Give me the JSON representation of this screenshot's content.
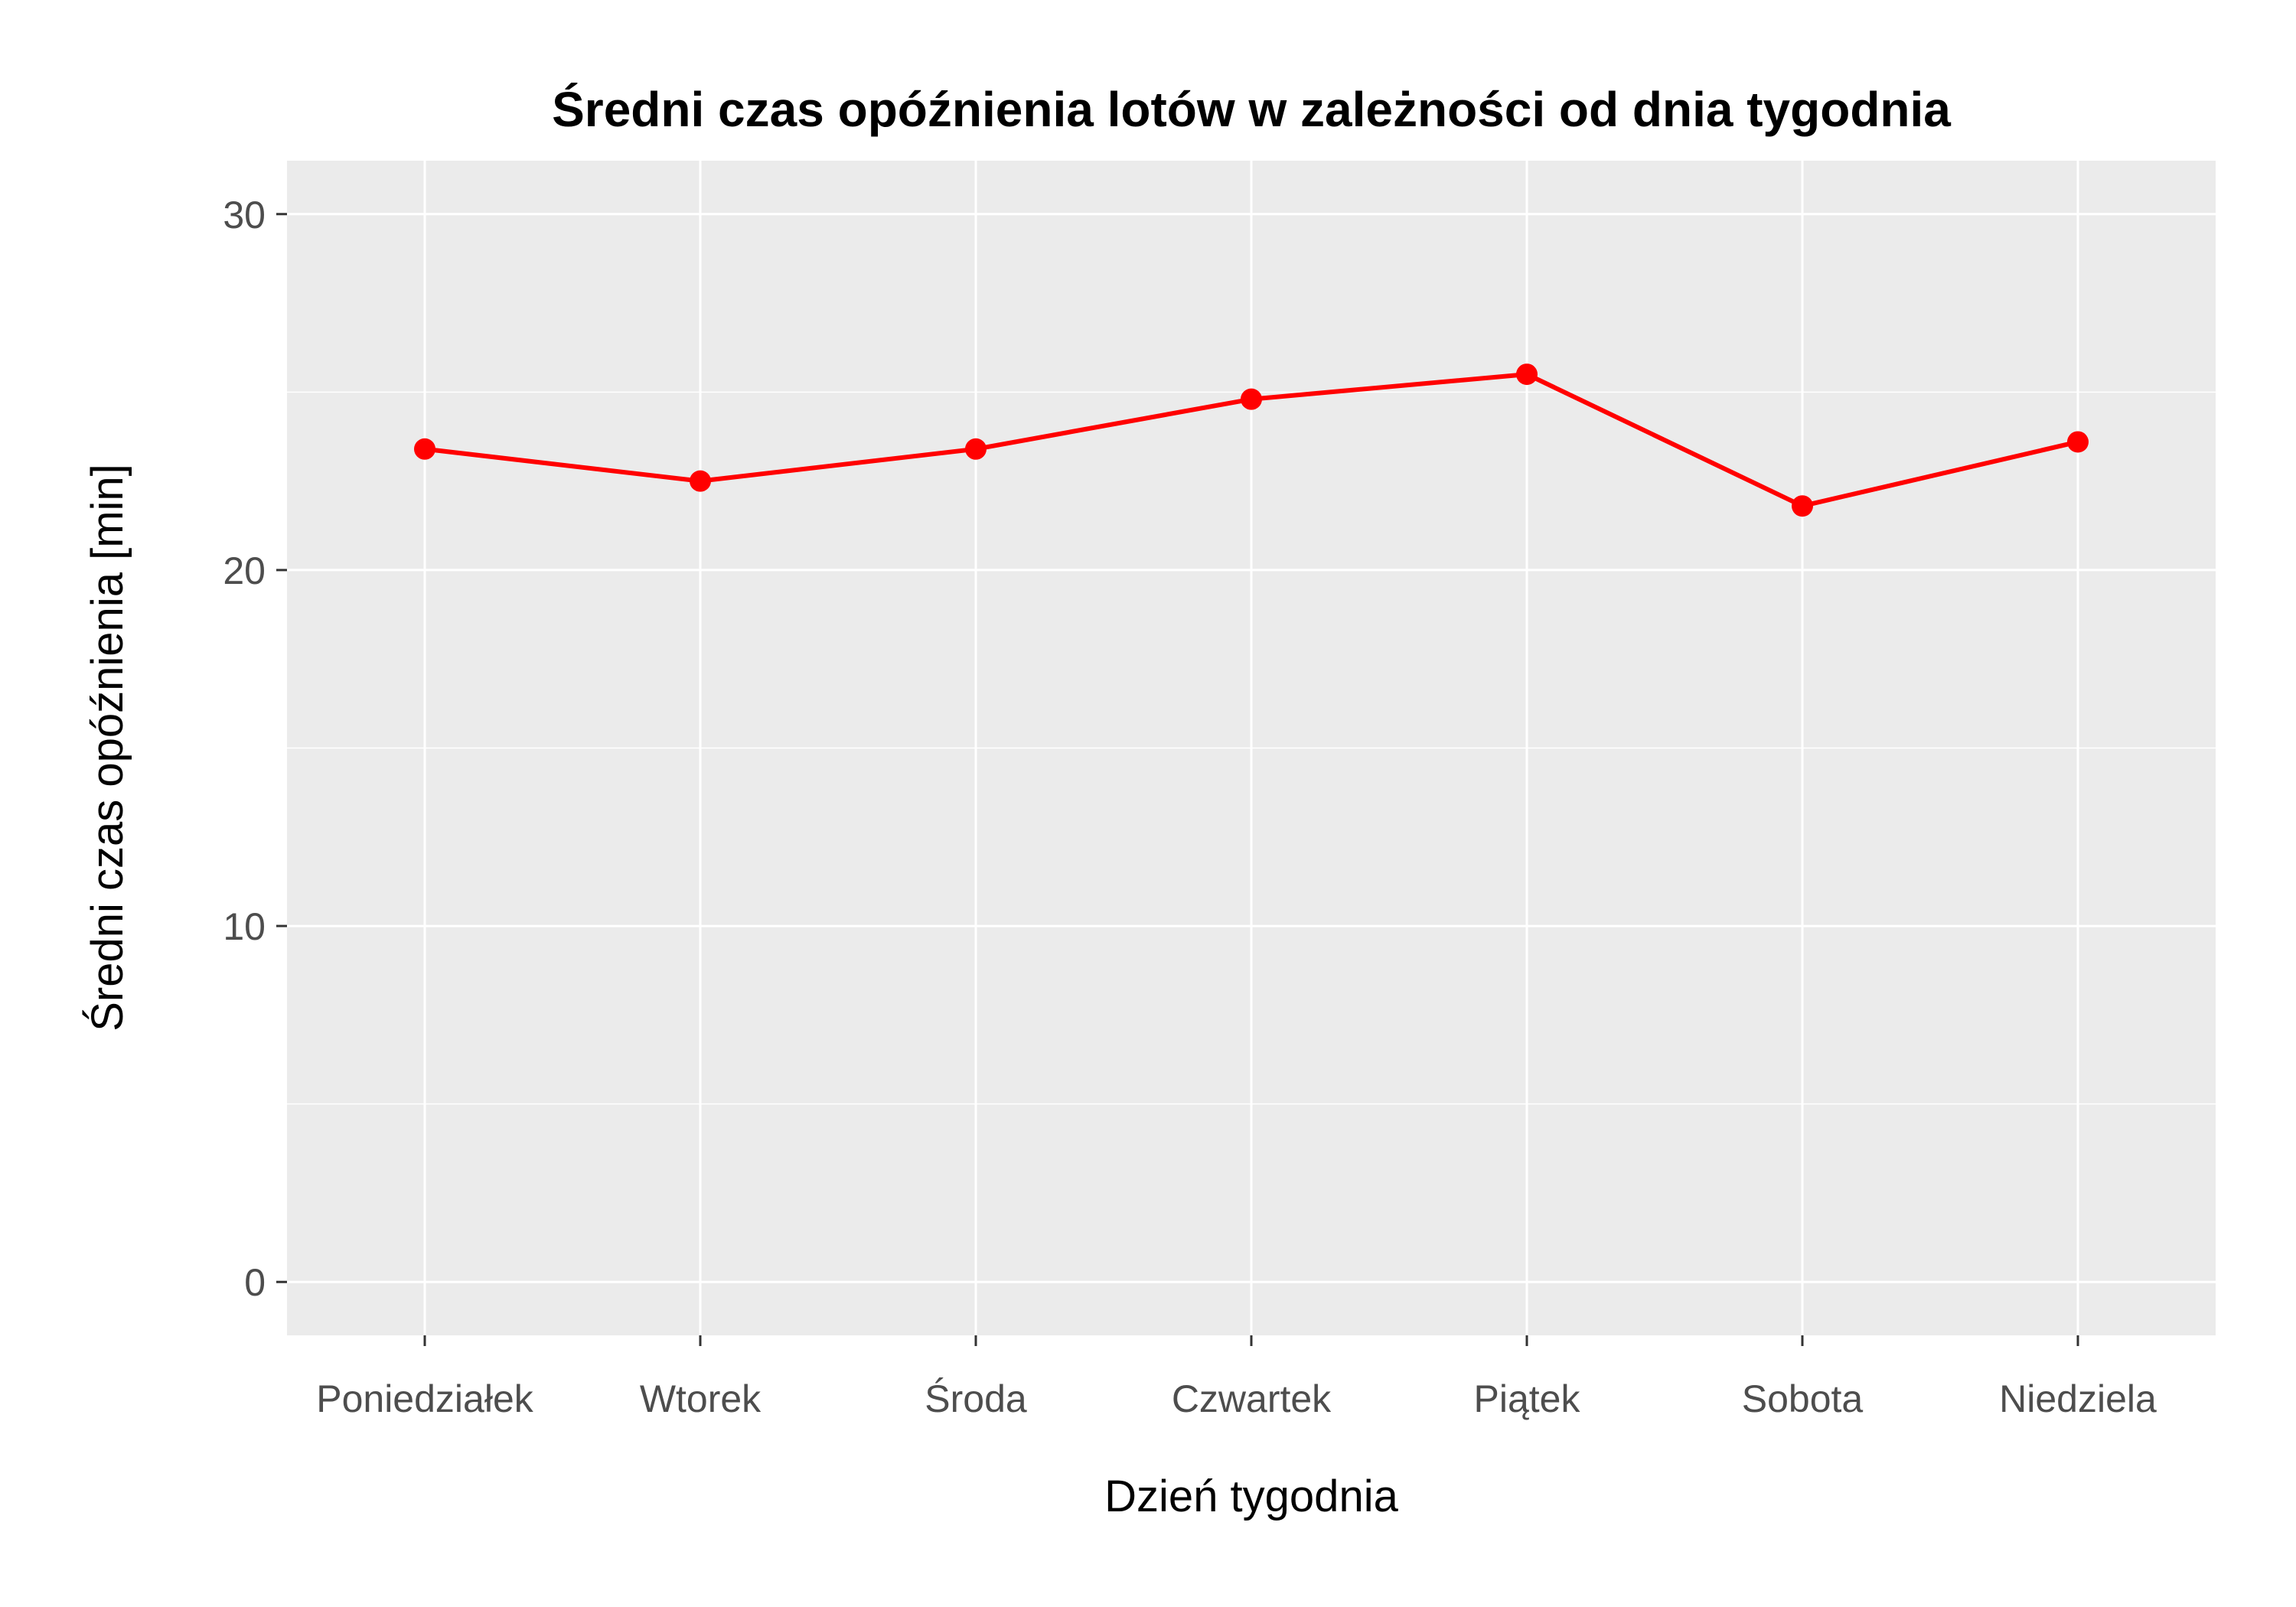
{
  "chart_data": {
    "type": "line",
    "title": "Średni czas opóźnienia lotów w zależności od dnia tygodnia",
    "xlabel": "Dzień tygodnia",
    "ylabel": "Średni czas opóźnienia [min]",
    "categories": [
      "Poniedziałek",
      "Wtorek",
      "Środa",
      "Czwartek",
      "Piątek",
      "Sobota",
      "Niedziela"
    ],
    "series": [
      {
        "values": [
          23.4,
          22.5,
          23.4,
          24.8,
          25.5,
          21.8,
          23.6
        ],
        "color": "#ff0000"
      }
    ],
    "ylim": [
      -1.5,
      31.5
    ],
    "yticks": [
      0,
      10,
      20,
      30
    ],
    "grid": true,
    "panel_background": "#ebebeb",
    "grid_color": "#ffffff",
    "legend": "none"
  }
}
